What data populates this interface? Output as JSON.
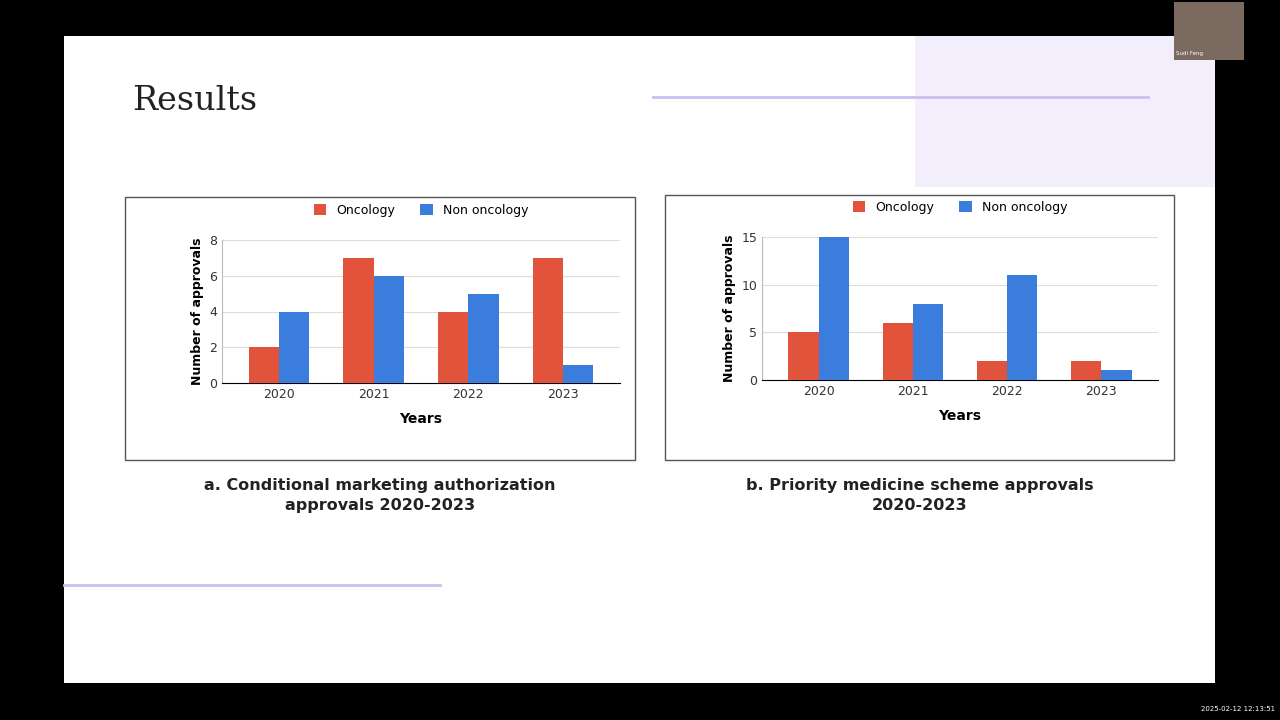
{
  "title": "Results",
  "presenter": "Sudi Feng",
  "timestamp": "2025-02-12 12:13:51",
  "chart_data": [
    {
      "type": "bar",
      "title": "a. Conditional marketing authorization approvals 2020-2023",
      "x_label": "Years",
      "y_label": "Number of approvals",
      "categories": [
        "2020",
        "2021",
        "2022",
        "2023"
      ],
      "series": [
        {
          "name": "Oncology",
          "color": "#e2533c",
          "values": [
            2,
            7,
            4,
            7
          ]
        },
        {
          "name": "Non oncology",
          "color": "#3b7ddd",
          "values": [
            4,
            6,
            5,
            1
          ]
        }
      ],
      "ylim": [
        0,
        8
      ],
      "yticks": [
        0,
        2,
        4,
        6,
        8
      ],
      "grid": true,
      "legend": "upper center"
    },
    {
      "type": "bar",
      "title": "b. Priority medicine scheme approvals 2020-2023",
      "x_label": "Years",
      "y_label": "Number of approvals",
      "categories": [
        "2020",
        "2021",
        "2022",
        "2023"
      ],
      "series": [
        {
          "name": "Oncology",
          "color": "#e2533c",
          "values": [
            5,
            6,
            2,
            2
          ]
        },
        {
          "name": "Non oncology",
          "color": "#3b7ddd",
          "values": [
            15,
            8,
            11,
            1
          ]
        }
      ],
      "ylim": [
        0,
        15
      ],
      "yticks": [
        0,
        5,
        10,
        15
      ],
      "grid": true,
      "legend": "upper center"
    }
  ]
}
